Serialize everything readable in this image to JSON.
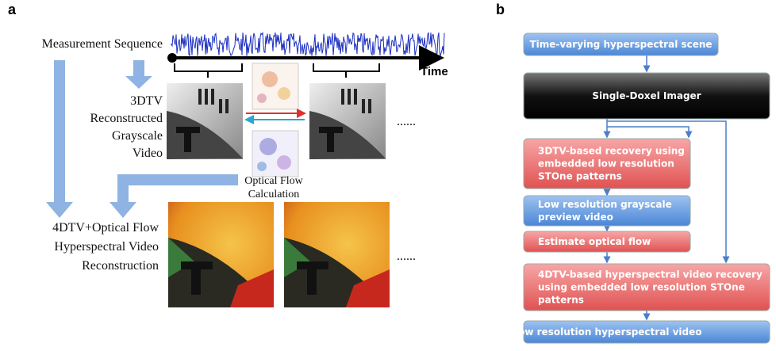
{
  "panel_a": {
    "label": "a",
    "measurement": "Measurement Sequence",
    "time": "Time",
    "grayscale": [
      "3DTV",
      "Reconstructed",
      "Grayscale",
      "Video"
    ],
    "flow": [
      "Optical Flow",
      "Calculation"
    ],
    "hyper": [
      "4DTV+Optical Flow",
      "Hyperspectral Video",
      "Reconstruction"
    ],
    "ellipsis": "......"
  },
  "panel_b": {
    "label": "b",
    "nodes": [
      {
        "lines": [
          "Time-varying hyperspectral scene"
        ]
      },
      {
        "lines": [
          "Single-Doxel Imager"
        ]
      },
      {
        "lines": [
          "3DTV-based recovery using",
          "embedded low resolution",
          "STOne patterns"
        ]
      },
      {
        "lines": [
          "Low resolution grayscale",
          "preview video"
        ]
      },
      {
        "lines": [
          "Estimate optical flow"
        ]
      },
      {
        "lines": [
          "4DTV-based hyperspectral video recovery",
          "using embedded low resolution STOne",
          "patterns"
        ]
      },
      {
        "lines": [
          "Low resolution hyperspectral video"
        ]
      }
    ]
  }
}
